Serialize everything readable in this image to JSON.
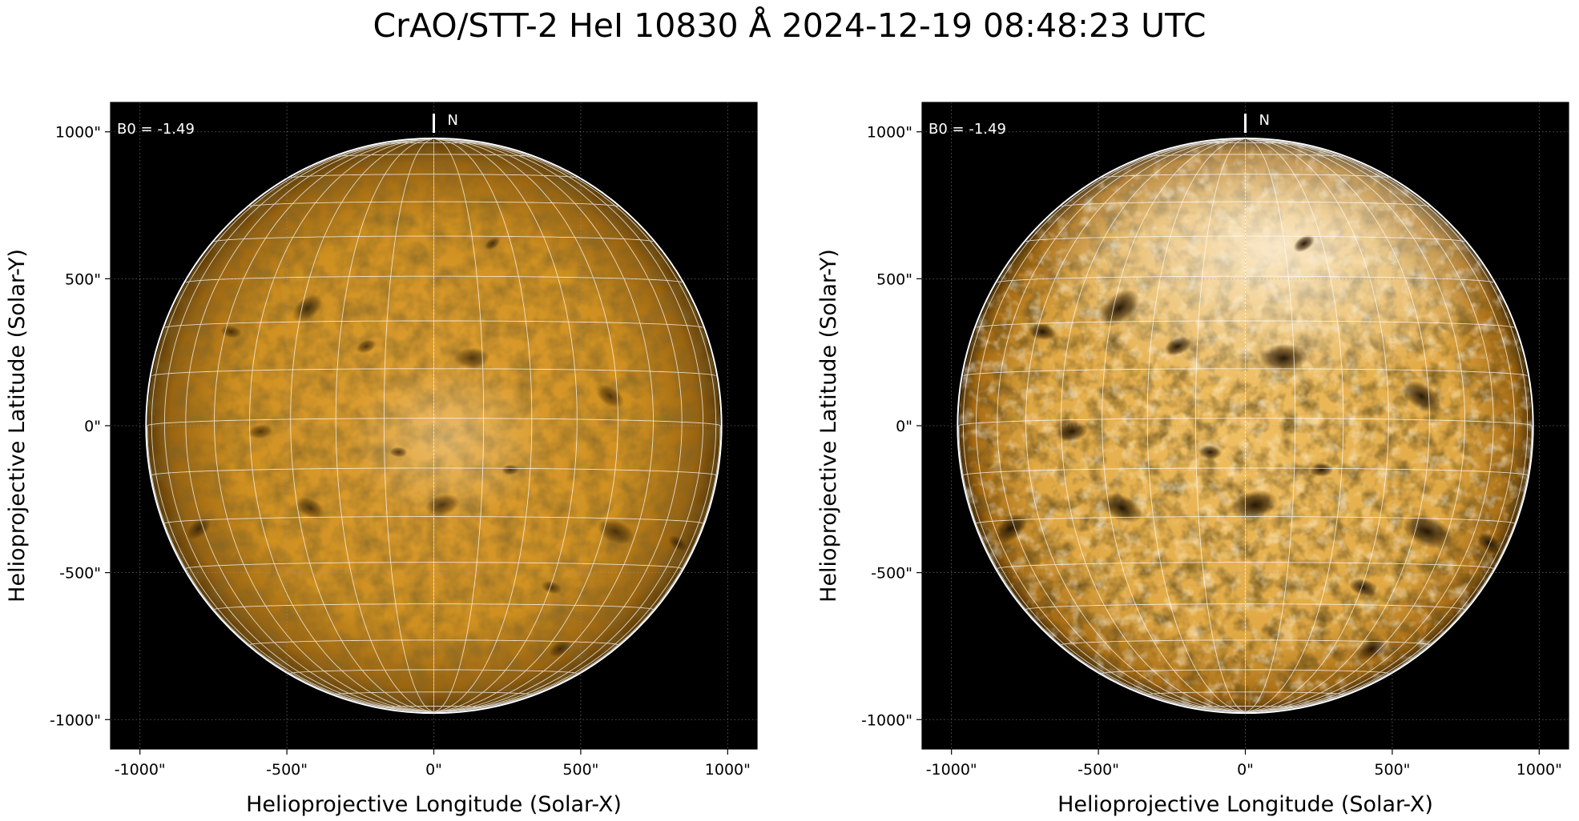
{
  "figure": {
    "title": "CrAO/STT-2 HeI 10830 Å 2024-12-19 08:48:23 UTC"
  },
  "colors": {
    "sun_base": "#c98a12",
    "sun_light": "#f1c46a",
    "sun_dark": "#3a2406",
    "background": "#000000",
    "grid": "#ffffff"
  },
  "panels": [
    {
      "b0_label": "B0 = -1.49",
      "north_label": "N",
      "xlabel": "Helioprojective Longitude (Solar-X)",
      "ylabel": "Helioprojective Latitude (Solar-Y)",
      "xticks": [
        "-1000\"",
        "-500\"",
        "0\"",
        "500\"",
        "1000\""
      ],
      "yticks": [
        "1000\"",
        "500\"",
        "0\"",
        "-500\"",
        "-1000\""
      ],
      "tick_values": [
        -1000,
        -500,
        0,
        500,
        1000
      ],
      "axis_range_arcsec": [
        -1100,
        1100
      ],
      "solar_radius_arcsec": 975,
      "contrast": "normal"
    },
    {
      "b0_label": "B0 = -1.49",
      "north_label": "N",
      "xlabel": "Helioprojective Longitude (Solar-X)",
      "ylabel": "Helioprojective Latitude (Solar-Y)",
      "xticks": [
        "-1000\"",
        "-500\"",
        "0\"",
        "500\"",
        "1000\""
      ],
      "yticks": [
        "1000\"",
        "500\"",
        "0\"",
        "-500\"",
        "-1000\""
      ],
      "tick_values": [
        -1000,
        -500,
        0,
        500,
        1000
      ],
      "axis_range_arcsec": [
        -1100,
        1100
      ],
      "solar_radius_arcsec": 975,
      "contrast": "enhanced"
    }
  ],
  "features": [
    {
      "x": -430,
      "y": 400,
      "s": 1.0
    },
    {
      "x": 130,
      "y": 230,
      "s": 1.0
    },
    {
      "x": 600,
      "y": 100,
      "s": 0.9
    },
    {
      "x": -590,
      "y": -20,
      "s": 0.7
    },
    {
      "x": -420,
      "y": -280,
      "s": 0.9
    },
    {
      "x": 30,
      "y": -270,
      "s": 1.0
    },
    {
      "x": 620,
      "y": -360,
      "s": 1.1
    },
    {
      "x": -230,
      "y": 270,
      "s": 0.6
    },
    {
      "x": 400,
      "y": -550,
      "s": 0.6
    },
    {
      "x": 430,
      "y": -760,
      "s": 0.7
    },
    {
      "x": -690,
      "y": 320,
      "s": 0.6
    },
    {
      "x": 200,
      "y": 620,
      "s": 0.5
    },
    {
      "x": -120,
      "y": -90,
      "s": 0.5
    },
    {
      "x": -800,
      "y": -350,
      "s": 0.8
    },
    {
      "x": 260,
      "y": -150,
      "s": 0.5
    },
    {
      "x": 830,
      "y": -400,
      "s": 0.6
    }
  ]
}
